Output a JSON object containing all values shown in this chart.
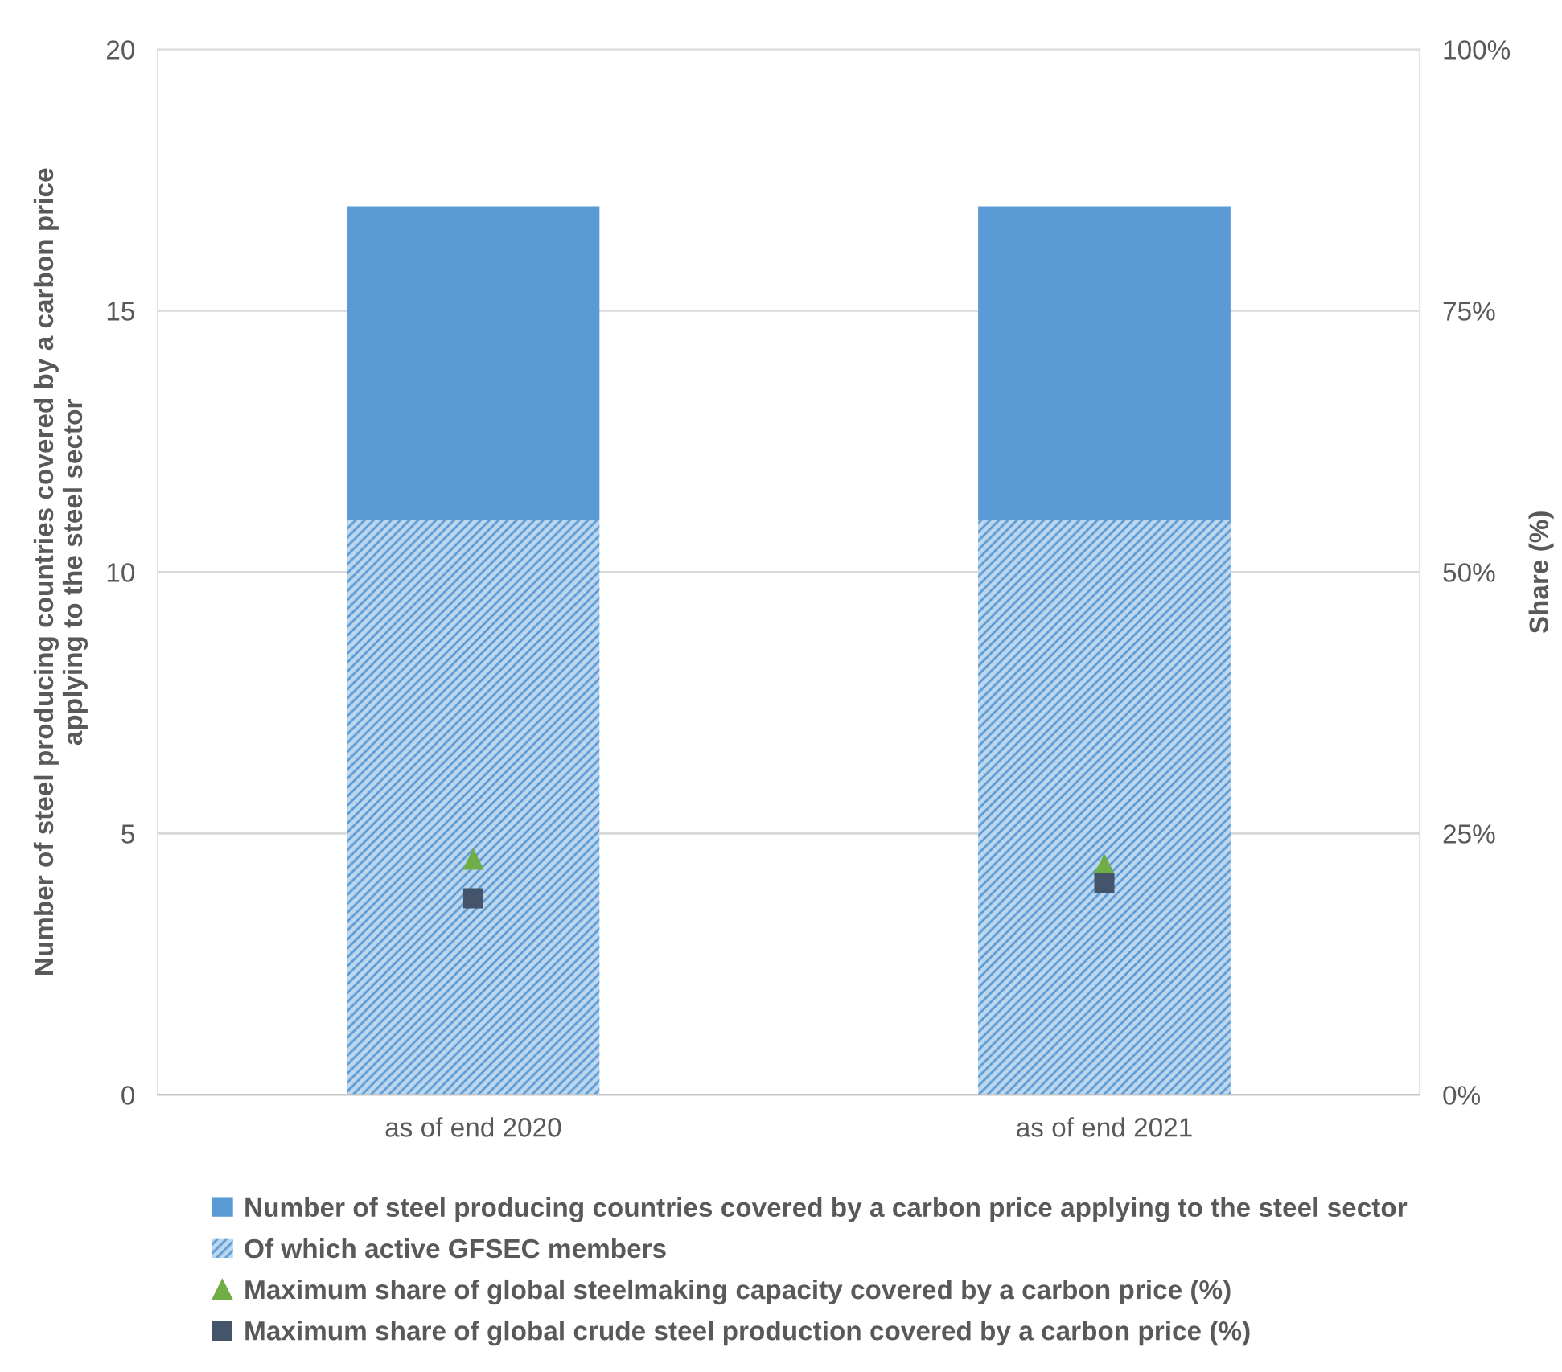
{
  "chart_data": {
    "type": "bar",
    "stacked": true,
    "ylabel": "Number of steel producing countries covered by a carbon price\napplying to the steel sector",
    "y2label": "Share (%)",
    "categories": [
      "as of end 2020",
      "as of end 2021"
    ],
    "series": [
      {
        "name": "Of which active GFSEC members",
        "color": "#bdd7ee",
        "values": [
          11,
          11
        ]
      },
      {
        "name": "Number of steel producing countries covered by a carbon price applying to the steel sector",
        "color": "#5b9bd5",
        "values": [
          6,
          6
        ]
      },
      {
        "name": "Maximum share of global steelmaking capacity covered by a carbon price (%)",
        "type": "scatter",
        "axis": "y2",
        "marker": "triangle",
        "color": "#70ad47",
        "values": [
          22.5,
          22
        ]
      },
      {
        "name": "Maximum share of global crude steel production covered by a carbon price (%)",
        "type": "scatter",
        "axis": "y2",
        "marker": "square",
        "color": "#44546a",
        "values": [
          18.8,
          20.3
        ]
      }
    ],
    "ylim": [
      0,
      20
    ],
    "yticks": [
      0,
      5,
      10,
      15,
      20
    ],
    "y2lim": [
      0,
      100
    ],
    "y2ticks": [
      {
        "value": 0,
        "label": "0%"
      },
      {
        "value": 25,
        "label": "25%"
      },
      {
        "value": 50,
        "label": "50%"
      },
      {
        "value": 75,
        "label": "75%"
      },
      {
        "value": 100,
        "label": "100%"
      }
    ],
    "grid": "y",
    "legend": "bottom"
  }
}
